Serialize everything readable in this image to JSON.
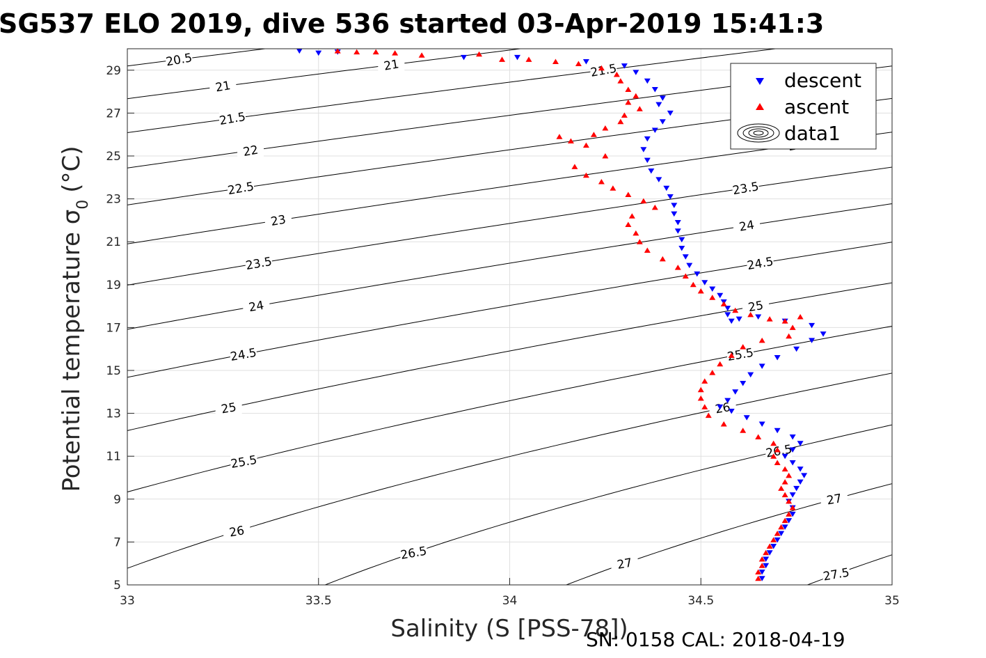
{
  "chart_data": {
    "type": "scatter",
    "title": "SG537 ELO 2019, dive 536 started 03-Apr-2019 15:41:3",
    "xlabel": "Salinity (S [PSS-78])",
    "ylabel": "Potential temperature σ",
    "ylabel_sub": "0",
    "ylabel_unit": "(°C)",
    "xlim": [
      33,
      35
    ],
    "ylim": [
      5,
      30
    ],
    "xticks": [
      33,
      33.5,
      34,
      34.5,
      35
    ],
    "xtick_labels": [
      "33",
      "33.5",
      "34",
      "34.5",
      "35"
    ],
    "yticks": [
      5,
      7,
      9,
      11,
      13,
      15,
      17,
      19,
      21,
      23,
      25,
      27,
      29
    ],
    "ytick_labels": [
      "5",
      "7",
      "9",
      "11",
      "13",
      "15",
      "17",
      "19",
      "21",
      "23",
      "25",
      "27",
      "29"
    ],
    "grid": true,
    "legend_position": "top-right",
    "contour_levels": [
      20.5,
      21,
      21.5,
      22,
      22.5,
      23,
      23.5,
      24,
      24.5,
      25,
      25.5,
      26,
      26.5,
      27,
      27.5
    ],
    "contour_level_labels": [
      "20.5",
      "21",
      "21.5",
      "22",
      "22.5",
      "23",
      "23.5",
      "24",
      "24.5",
      "25",
      "25.5",
      "26",
      "26.5",
      "27",
      "27.5"
    ],
    "series": [
      {
        "name": "descent",
        "marker": "down-triangle",
        "color": "#0000ff",
        "points": [
          [
            33.45,
            29.9
          ],
          [
            33.5,
            29.8
          ],
          [
            33.55,
            29.85
          ],
          [
            33.88,
            29.6
          ],
          [
            34.02,
            29.6
          ],
          [
            34.2,
            29.4
          ],
          [
            34.3,
            29.2
          ],
          [
            34.33,
            28.9
          ],
          [
            34.36,
            28.5
          ],
          [
            34.38,
            28.1
          ],
          [
            34.4,
            27.7
          ],
          [
            34.39,
            27.4
          ],
          [
            34.42,
            27.0
          ],
          [
            34.4,
            26.6
          ],
          [
            34.38,
            26.2
          ],
          [
            34.36,
            25.8
          ],
          [
            34.35,
            25.3
          ],
          [
            34.36,
            24.8
          ],
          [
            34.37,
            24.3
          ],
          [
            34.39,
            23.9
          ],
          [
            34.41,
            23.5
          ],
          [
            34.42,
            23.1
          ],
          [
            34.43,
            22.7
          ],
          [
            34.43,
            22.3
          ],
          [
            34.44,
            21.9
          ],
          [
            34.44,
            21.5
          ],
          [
            34.45,
            21.1
          ],
          [
            34.45,
            20.7
          ],
          [
            34.46,
            20.3
          ],
          [
            34.47,
            19.9
          ],
          [
            34.49,
            19.5
          ],
          [
            34.51,
            19.1
          ],
          [
            34.53,
            18.8
          ],
          [
            34.55,
            18.5
          ],
          [
            34.56,
            18.2
          ],
          [
            34.57,
            17.9
          ],
          [
            34.57,
            17.6
          ],
          [
            34.58,
            17.3
          ],
          [
            34.6,
            17.4
          ],
          [
            34.65,
            17.5
          ],
          [
            34.72,
            17.3
          ],
          [
            34.79,
            17.1
          ],
          [
            34.82,
            16.7
          ],
          [
            34.79,
            16.4
          ],
          [
            34.75,
            16.0
          ],
          [
            34.7,
            15.6
          ],
          [
            34.66,
            15.2
          ],
          [
            34.63,
            14.8
          ],
          [
            34.61,
            14.4
          ],
          [
            34.59,
            14.0
          ],
          [
            34.57,
            13.6
          ],
          [
            34.55,
            13.3
          ],
          [
            34.58,
            13.1
          ],
          [
            34.62,
            12.8
          ],
          [
            34.66,
            12.5
          ],
          [
            34.7,
            12.2
          ],
          [
            34.74,
            11.9
          ],
          [
            34.76,
            11.6
          ],
          [
            34.74,
            11.3
          ],
          [
            34.72,
            11.0
          ],
          [
            34.74,
            10.7
          ],
          [
            34.76,
            10.4
          ],
          [
            34.77,
            10.1
          ],
          [
            34.76,
            9.8
          ],
          [
            34.75,
            9.5
          ],
          [
            34.74,
            9.2
          ],
          [
            34.73,
            8.9
          ],
          [
            34.74,
            8.6
          ],
          [
            34.74,
            8.3
          ],
          [
            34.73,
            8.0
          ],
          [
            34.72,
            7.7
          ],
          [
            34.71,
            7.4
          ],
          [
            34.7,
            7.1
          ],
          [
            34.69,
            6.8
          ],
          [
            34.68,
            6.5
          ],
          [
            34.67,
            6.2
          ],
          [
            34.67,
            5.9
          ],
          [
            34.66,
            5.6
          ],
          [
            34.66,
            5.3
          ]
        ]
      },
      {
        "name": "ascent",
        "marker": "up-triangle",
        "color": "#ff0000",
        "points": [
          [
            33.55,
            29.9
          ],
          [
            33.6,
            29.85
          ],
          [
            33.65,
            29.85
          ],
          [
            33.7,
            29.8
          ],
          [
            33.77,
            29.7
          ],
          [
            33.92,
            29.75
          ],
          [
            33.98,
            29.5
          ],
          [
            34.05,
            29.5
          ],
          [
            34.12,
            29.4
          ],
          [
            34.18,
            29.3
          ],
          [
            34.24,
            29.1
          ],
          [
            34.28,
            28.8
          ],
          [
            34.29,
            28.5
          ],
          [
            34.31,
            28.1
          ],
          [
            34.33,
            27.8
          ],
          [
            34.31,
            27.5
          ],
          [
            34.34,
            27.2
          ],
          [
            34.3,
            26.9
          ],
          [
            34.29,
            26.6
          ],
          [
            34.25,
            26.3
          ],
          [
            34.22,
            26.0
          ],
          [
            34.16,
            25.7
          ],
          [
            34.13,
            25.9
          ],
          [
            34.2,
            25.5
          ],
          [
            34.25,
            25.0
          ],
          [
            34.17,
            24.5
          ],
          [
            34.2,
            24.1
          ],
          [
            34.24,
            23.8
          ],
          [
            34.27,
            23.5
          ],
          [
            34.31,
            23.2
          ],
          [
            34.35,
            22.9
          ],
          [
            34.38,
            22.6
          ],
          [
            34.32,
            22.2
          ],
          [
            34.31,
            21.8
          ],
          [
            34.33,
            21.4
          ],
          [
            34.34,
            21.0
          ],
          [
            34.36,
            20.6
          ],
          [
            34.4,
            20.2
          ],
          [
            34.44,
            19.8
          ],
          [
            34.46,
            19.4
          ],
          [
            34.48,
            19.0
          ],
          [
            34.5,
            18.7
          ],
          [
            34.53,
            18.4
          ],
          [
            34.56,
            18.1
          ],
          [
            34.59,
            17.8
          ],
          [
            34.63,
            17.6
          ],
          [
            34.68,
            17.4
          ],
          [
            34.72,
            17.3
          ],
          [
            34.76,
            17.5
          ],
          [
            34.74,
            17.0
          ],
          [
            34.73,
            16.6
          ],
          [
            34.66,
            16.4
          ],
          [
            34.61,
            16.1
          ],
          [
            34.58,
            15.7
          ],
          [
            34.55,
            15.3
          ],
          [
            34.53,
            14.9
          ],
          [
            34.51,
            14.5
          ],
          [
            34.5,
            14.1
          ],
          [
            34.5,
            13.7
          ],
          [
            34.51,
            13.3
          ],
          [
            34.52,
            12.9
          ],
          [
            34.56,
            12.5
          ],
          [
            34.61,
            12.2
          ],
          [
            34.65,
            11.9
          ],
          [
            34.69,
            11.6
          ],
          [
            34.7,
            11.3
          ],
          [
            34.69,
            11.0
          ],
          [
            34.7,
            10.7
          ],
          [
            34.72,
            10.4
          ],
          [
            34.73,
            10.1
          ],
          [
            34.72,
            9.8
          ],
          [
            34.71,
            9.5
          ],
          [
            34.72,
            9.2
          ],
          [
            34.73,
            8.9
          ],
          [
            34.74,
            8.6
          ],
          [
            34.73,
            8.3
          ],
          [
            34.72,
            8.0
          ],
          [
            34.71,
            7.7
          ],
          [
            34.7,
            7.4
          ],
          [
            34.69,
            7.1
          ],
          [
            34.68,
            6.8
          ],
          [
            34.67,
            6.5
          ],
          [
            34.66,
            6.2
          ],
          [
            34.66,
            5.9
          ],
          [
            34.65,
            5.6
          ],
          [
            34.65,
            5.3
          ]
        ]
      },
      {
        "name": "data1",
        "marker": "contour",
        "color": "#000000",
        "points": []
      }
    ]
  },
  "footer": {
    "sn_cal": "SN: 0158  CAL: 2018-04-19"
  }
}
